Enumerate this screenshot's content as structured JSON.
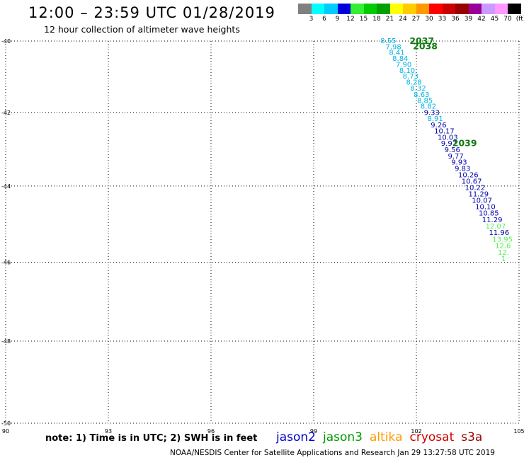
{
  "header": {
    "title": "12:00 – 23:59 UTC 01/28/2019",
    "subtitle": "12 hour collection of altimeter wave heights"
  },
  "colorbar": {
    "colors": [
      "#808080",
      "#00ffff",
      "#00ccff",
      "#0000dd",
      "#33ee33",
      "#00cc00",
      "#00a000",
      "#ffff00",
      "#ffcc00",
      "#ff9900",
      "#ff0000",
      "#cc0000",
      "#990000",
      "#990099",
      "#cc99ff",
      "#ff99ff",
      "#000000"
    ],
    "labels": [
      "3",
      "6",
      "9",
      "12",
      "15",
      "18",
      "21",
      "24",
      "27",
      "30",
      "33",
      "36",
      "39",
      "42",
      "45",
      "70",
      "(ft)"
    ]
  },
  "map": {
    "lat_ticks": [
      "-40",
      "-42",
      "-44",
      "-46",
      "-48",
      "-50"
    ],
    "lon_ticks": [
      "90",
      "93",
      "96",
      "99",
      "102",
      "105"
    ],
    "passes": [
      {
        "label": "2037",
        "lon": 101.8,
        "lat": -40.0
      },
      {
        "label": "2038",
        "lon": 101.9,
        "lat": -40.15
      },
      {
        "label": "2039",
        "lon": 103.05,
        "lat": -42.85
      }
    ],
    "observations": [
      {
        "v": "8.55",
        "lon": 100.95,
        "lat": -40.0,
        "c": "#00b4e0"
      },
      {
        "v": "7.98",
        "lon": 101.1,
        "lat": -40.17,
        "c": "#00b4e0"
      },
      {
        "v": "8.41",
        "lon": 101.2,
        "lat": -40.33,
        "c": "#00b4e0"
      },
      {
        "v": "8.84",
        "lon": 101.3,
        "lat": -40.5,
        "c": "#00b4e0"
      },
      {
        "v": "7.90",
        "lon": 101.4,
        "lat": -40.67,
        "c": "#00b4e0"
      },
      {
        "v": "8.10",
        "lon": 101.5,
        "lat": -40.84,
        "c": "#00b4e0"
      },
      {
        "v": "8.73",
        "lon": 101.6,
        "lat": -41.0,
        "c": "#00b4e0"
      },
      {
        "v": "8.28",
        "lon": 101.7,
        "lat": -41.17,
        "c": "#00b4e0"
      },
      {
        "v": "8.32",
        "lon": 101.82,
        "lat": -41.34,
        "c": "#00b4e0"
      },
      {
        "v": "8.63",
        "lon": 101.92,
        "lat": -41.51,
        "c": "#00b4e0"
      },
      {
        "v": "8.85",
        "lon": 102.02,
        "lat": -41.68,
        "c": "#00b4e0"
      },
      {
        "v": "8.82",
        "lon": 102.12,
        "lat": -41.84,
        "c": "#00b4e0"
      },
      {
        "v": "9.33",
        "lon": 102.22,
        "lat": -42.01,
        "c": "#0000aa"
      },
      {
        "v": "8.91",
        "lon": 102.32,
        "lat": -42.18,
        "c": "#00b4e0"
      },
      {
        "v": "9.26",
        "lon": 102.42,
        "lat": -42.35,
        "c": "#0000aa"
      },
      {
        "v": "10.17",
        "lon": 102.52,
        "lat": -42.52,
        "c": "#0000aa"
      },
      {
        "v": "10.03",
        "lon": 102.62,
        "lat": -42.69,
        "c": "#0000aa"
      },
      {
        "v": "9.97",
        "lon": 102.72,
        "lat": -42.86,
        "c": "#0000aa"
      },
      {
        "v": "9.56",
        "lon": 102.82,
        "lat": -43.03,
        "c": "#0000aa"
      },
      {
        "v": "9.77",
        "lon": 102.92,
        "lat": -43.2,
        "c": "#0000aa"
      },
      {
        "v": "9.93",
        "lon": 103.02,
        "lat": -43.37,
        "c": "#0000aa"
      },
      {
        "v": "9.83",
        "lon": 103.12,
        "lat": -43.54,
        "c": "#0000aa"
      },
      {
        "v": "10.26",
        "lon": 103.22,
        "lat": -43.71,
        "c": "#0000aa"
      },
      {
        "v": "10.67",
        "lon": 103.32,
        "lat": -43.88,
        "c": "#0000aa"
      },
      {
        "v": "10.22",
        "lon": 103.42,
        "lat": -44.05,
        "c": "#0000aa"
      },
      {
        "v": "11.29",
        "lon": 103.52,
        "lat": -44.22,
        "c": "#0000aa"
      },
      {
        "v": "10.07",
        "lon": 103.62,
        "lat": -44.39,
        "c": "#0000aa"
      },
      {
        "v": "10.10",
        "lon": 103.72,
        "lat": -44.56,
        "c": "#0000aa"
      },
      {
        "v": "10.85",
        "lon": 103.82,
        "lat": -44.73,
        "c": "#0000aa"
      },
      {
        "v": "11.29",
        "lon": 103.92,
        "lat": -44.9,
        "c": "#0000aa"
      },
      {
        "v": "12.07",
        "lon": 104.02,
        "lat": -45.07,
        "c": "#55ee55"
      },
      {
        "v": "11.96",
        "lon": 104.12,
        "lat": -45.24,
        "c": "#0000aa"
      },
      {
        "v": "13.95",
        "lon": 104.22,
        "lat": -45.41,
        "c": "#55ee55"
      },
      {
        "v": "12.6",
        "lon": 104.3,
        "lat": -45.58,
        "c": "#55ee55"
      },
      {
        "v": "12.",
        "lon": 104.38,
        "lat": -45.75,
        "c": "#55ee55"
      },
      {
        "v": "1",
        "lon": 104.48,
        "lat": -45.92,
        "c": "#55ee55"
      }
    ]
  },
  "footer": {
    "note": "note: 1) Time is in UTC; 2) SWH is in feet",
    "satellites": [
      {
        "name": "jason2",
        "color": "#0000cc"
      },
      {
        "name": "jason3",
        "color": "#009900"
      },
      {
        "name": "altika",
        "color": "#ff9900"
      },
      {
        "name": "cryosat",
        "color": "#cc0000"
      },
      {
        "name": "s3a",
        "color": "#990000"
      }
    ],
    "credit": "NOAA/NESDIS Center for Satellite Applications and Research    Jan 29 13:27:58 UTC 2019"
  }
}
